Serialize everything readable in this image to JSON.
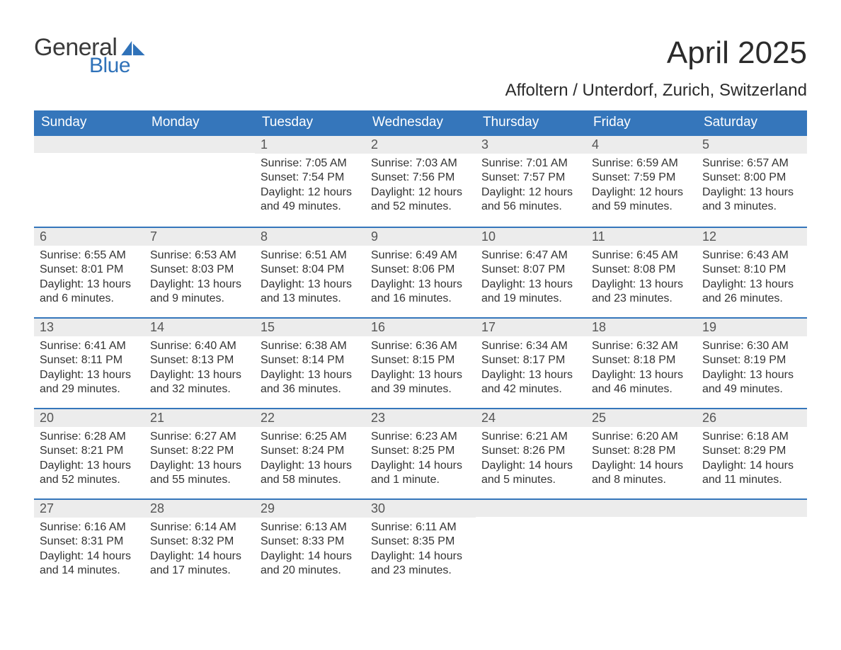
{
  "brand": {
    "word1": "General",
    "word2": "Blue",
    "word1_color": "#3a3a3a",
    "word2_color": "#2f72b9",
    "sail_color": "#2f72b9"
  },
  "title": "April 2025",
  "location": "Affoltern / Unterdorf, Zurich, Switzerland",
  "colors": {
    "header_bg": "#3576bb",
    "header_text": "#ffffff",
    "daynum_bg": "#ececec",
    "daynum_text": "#555555",
    "body_text": "#333333",
    "week_divider": "#3576bb",
    "page_bg": "#ffffff"
  },
  "fonts": {
    "title_size_pt": 33,
    "location_size_pt": 18,
    "header_size_pt": 14,
    "daynum_size_pt": 13,
    "body_size_pt": 12
  },
  "weekdays": [
    "Sunday",
    "Monday",
    "Tuesday",
    "Wednesday",
    "Thursday",
    "Friday",
    "Saturday"
  ],
  "weeks": [
    [
      {
        "n": "",
        "sunrise": "",
        "sunset": "",
        "daylight1": "",
        "daylight2": ""
      },
      {
        "n": "",
        "sunrise": "",
        "sunset": "",
        "daylight1": "",
        "daylight2": ""
      },
      {
        "n": "1",
        "sunrise": "Sunrise: 7:05 AM",
        "sunset": "Sunset: 7:54 PM",
        "daylight1": "Daylight: 12 hours",
        "daylight2": "and 49 minutes."
      },
      {
        "n": "2",
        "sunrise": "Sunrise: 7:03 AM",
        "sunset": "Sunset: 7:56 PM",
        "daylight1": "Daylight: 12 hours",
        "daylight2": "and 52 minutes."
      },
      {
        "n": "3",
        "sunrise": "Sunrise: 7:01 AM",
        "sunset": "Sunset: 7:57 PM",
        "daylight1": "Daylight: 12 hours",
        "daylight2": "and 56 minutes."
      },
      {
        "n": "4",
        "sunrise": "Sunrise: 6:59 AM",
        "sunset": "Sunset: 7:59 PM",
        "daylight1": "Daylight: 12 hours",
        "daylight2": "and 59 minutes."
      },
      {
        "n": "5",
        "sunrise": "Sunrise: 6:57 AM",
        "sunset": "Sunset: 8:00 PM",
        "daylight1": "Daylight: 13 hours",
        "daylight2": "and 3 minutes."
      }
    ],
    [
      {
        "n": "6",
        "sunrise": "Sunrise: 6:55 AM",
        "sunset": "Sunset: 8:01 PM",
        "daylight1": "Daylight: 13 hours",
        "daylight2": "and 6 minutes."
      },
      {
        "n": "7",
        "sunrise": "Sunrise: 6:53 AM",
        "sunset": "Sunset: 8:03 PM",
        "daylight1": "Daylight: 13 hours",
        "daylight2": "and 9 minutes."
      },
      {
        "n": "8",
        "sunrise": "Sunrise: 6:51 AM",
        "sunset": "Sunset: 8:04 PM",
        "daylight1": "Daylight: 13 hours",
        "daylight2": "and 13 minutes."
      },
      {
        "n": "9",
        "sunrise": "Sunrise: 6:49 AM",
        "sunset": "Sunset: 8:06 PM",
        "daylight1": "Daylight: 13 hours",
        "daylight2": "and 16 minutes."
      },
      {
        "n": "10",
        "sunrise": "Sunrise: 6:47 AM",
        "sunset": "Sunset: 8:07 PM",
        "daylight1": "Daylight: 13 hours",
        "daylight2": "and 19 minutes."
      },
      {
        "n": "11",
        "sunrise": "Sunrise: 6:45 AM",
        "sunset": "Sunset: 8:08 PM",
        "daylight1": "Daylight: 13 hours",
        "daylight2": "and 23 minutes."
      },
      {
        "n": "12",
        "sunrise": "Sunrise: 6:43 AM",
        "sunset": "Sunset: 8:10 PM",
        "daylight1": "Daylight: 13 hours",
        "daylight2": "and 26 minutes."
      }
    ],
    [
      {
        "n": "13",
        "sunrise": "Sunrise: 6:41 AM",
        "sunset": "Sunset: 8:11 PM",
        "daylight1": "Daylight: 13 hours",
        "daylight2": "and 29 minutes."
      },
      {
        "n": "14",
        "sunrise": "Sunrise: 6:40 AM",
        "sunset": "Sunset: 8:13 PM",
        "daylight1": "Daylight: 13 hours",
        "daylight2": "and 32 minutes."
      },
      {
        "n": "15",
        "sunrise": "Sunrise: 6:38 AM",
        "sunset": "Sunset: 8:14 PM",
        "daylight1": "Daylight: 13 hours",
        "daylight2": "and 36 minutes."
      },
      {
        "n": "16",
        "sunrise": "Sunrise: 6:36 AM",
        "sunset": "Sunset: 8:15 PM",
        "daylight1": "Daylight: 13 hours",
        "daylight2": "and 39 minutes."
      },
      {
        "n": "17",
        "sunrise": "Sunrise: 6:34 AM",
        "sunset": "Sunset: 8:17 PM",
        "daylight1": "Daylight: 13 hours",
        "daylight2": "and 42 minutes."
      },
      {
        "n": "18",
        "sunrise": "Sunrise: 6:32 AM",
        "sunset": "Sunset: 8:18 PM",
        "daylight1": "Daylight: 13 hours",
        "daylight2": "and 46 minutes."
      },
      {
        "n": "19",
        "sunrise": "Sunrise: 6:30 AM",
        "sunset": "Sunset: 8:19 PM",
        "daylight1": "Daylight: 13 hours",
        "daylight2": "and 49 minutes."
      }
    ],
    [
      {
        "n": "20",
        "sunrise": "Sunrise: 6:28 AM",
        "sunset": "Sunset: 8:21 PM",
        "daylight1": "Daylight: 13 hours",
        "daylight2": "and 52 minutes."
      },
      {
        "n": "21",
        "sunrise": "Sunrise: 6:27 AM",
        "sunset": "Sunset: 8:22 PM",
        "daylight1": "Daylight: 13 hours",
        "daylight2": "and 55 minutes."
      },
      {
        "n": "22",
        "sunrise": "Sunrise: 6:25 AM",
        "sunset": "Sunset: 8:24 PM",
        "daylight1": "Daylight: 13 hours",
        "daylight2": "and 58 minutes."
      },
      {
        "n": "23",
        "sunrise": "Sunrise: 6:23 AM",
        "sunset": "Sunset: 8:25 PM",
        "daylight1": "Daylight: 14 hours",
        "daylight2": "and 1 minute."
      },
      {
        "n": "24",
        "sunrise": "Sunrise: 6:21 AM",
        "sunset": "Sunset: 8:26 PM",
        "daylight1": "Daylight: 14 hours",
        "daylight2": "and 5 minutes."
      },
      {
        "n": "25",
        "sunrise": "Sunrise: 6:20 AM",
        "sunset": "Sunset: 8:28 PM",
        "daylight1": "Daylight: 14 hours",
        "daylight2": "and 8 minutes."
      },
      {
        "n": "26",
        "sunrise": "Sunrise: 6:18 AM",
        "sunset": "Sunset: 8:29 PM",
        "daylight1": "Daylight: 14 hours",
        "daylight2": "and 11 minutes."
      }
    ],
    [
      {
        "n": "27",
        "sunrise": "Sunrise: 6:16 AM",
        "sunset": "Sunset: 8:31 PM",
        "daylight1": "Daylight: 14 hours",
        "daylight2": "and 14 minutes."
      },
      {
        "n": "28",
        "sunrise": "Sunrise: 6:14 AM",
        "sunset": "Sunset: 8:32 PM",
        "daylight1": "Daylight: 14 hours",
        "daylight2": "and 17 minutes."
      },
      {
        "n": "29",
        "sunrise": "Sunrise: 6:13 AM",
        "sunset": "Sunset: 8:33 PM",
        "daylight1": "Daylight: 14 hours",
        "daylight2": "and 20 minutes."
      },
      {
        "n": "30",
        "sunrise": "Sunrise: 6:11 AM",
        "sunset": "Sunset: 8:35 PM",
        "daylight1": "Daylight: 14 hours",
        "daylight2": "and 23 minutes."
      },
      {
        "n": "",
        "sunrise": "",
        "sunset": "",
        "daylight1": "",
        "daylight2": ""
      },
      {
        "n": "",
        "sunrise": "",
        "sunset": "",
        "daylight1": "",
        "daylight2": ""
      },
      {
        "n": "",
        "sunrise": "",
        "sunset": "",
        "daylight1": "",
        "daylight2": ""
      }
    ]
  ]
}
